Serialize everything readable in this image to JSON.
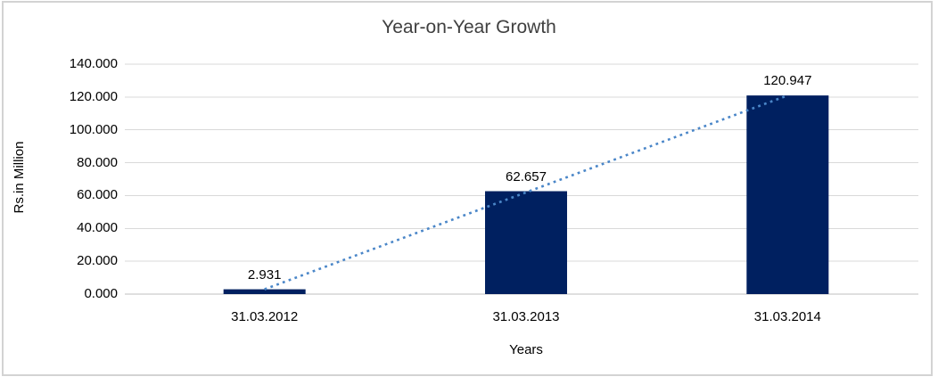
{
  "chart_data": {
    "type": "bar",
    "title": "Year-on-Year Growth",
    "xlabel": "Years",
    "ylabel": "Rs.in Million",
    "categories": [
      "31.03.2012",
      "31.03.2013",
      "31.03.2014"
    ],
    "series": [
      {
        "name": "Rs.in Million",
        "values": [
          2.931,
          62.657,
          120.947
        ]
      }
    ],
    "data_labels": [
      "2.931",
      "62.657",
      "120.947"
    ],
    "y_ticks": [
      "0.000",
      "20.000",
      "40.000",
      "60.000",
      "80.000",
      "100.000",
      "120.000",
      "140.000"
    ],
    "ylim": [
      0,
      140
    ],
    "y_tick_step": 20,
    "grid": "horizontal",
    "legend": "none",
    "trendline": {
      "type": "linear",
      "style": "dotted"
    },
    "colors": {
      "bar": "#002060",
      "trendline": "#4A86C8",
      "gridline": "#D9D9D9",
      "axis_line": "#BFBFBF",
      "text": "#000000",
      "title_text": "#404040",
      "frame_border": "#D3D3D3",
      "background": "#FFFFFF"
    }
  }
}
